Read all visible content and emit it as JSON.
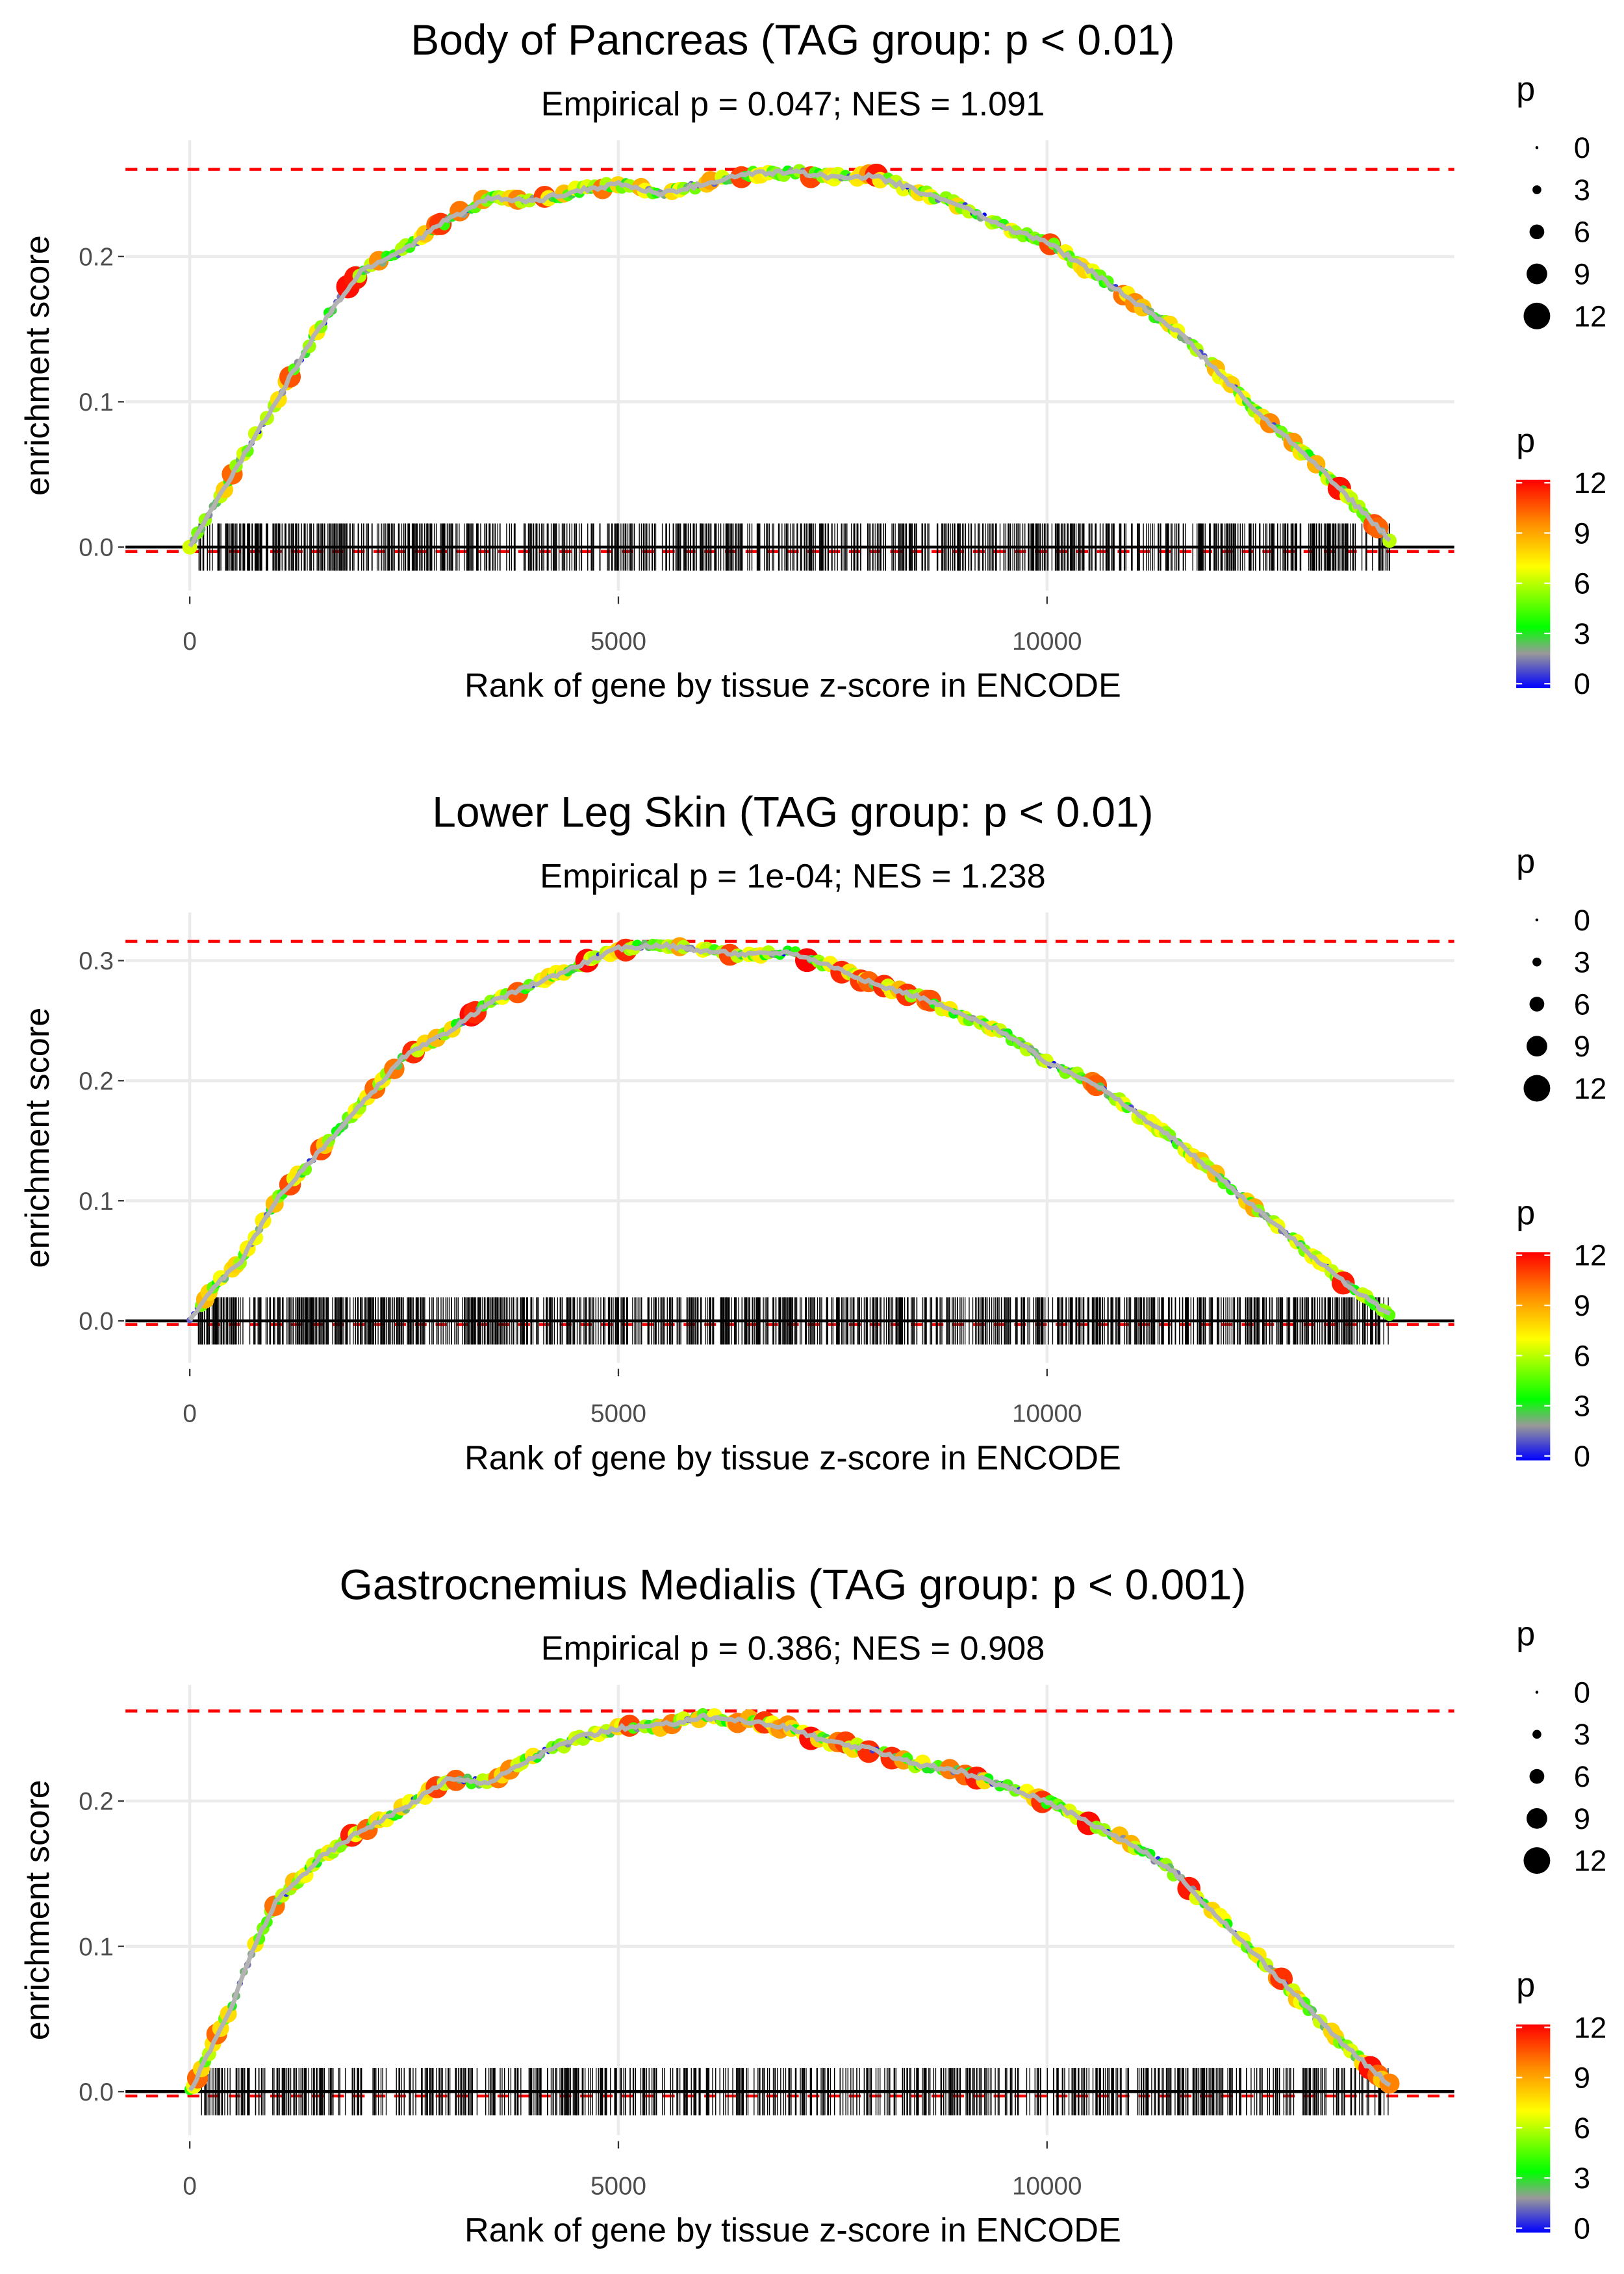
{
  "chart_data": [
    {
      "type": "line",
      "title": "Body of Pancreas (TAG group: p < 0.01)",
      "subtitle": "Empirical p = 0.047; NES = 1.091",
      "xlabel": "Rank of gene by tissue z-score in ENCODE",
      "ylabel": "enrichment score",
      "xticks": [
        0,
        5000,
        10000
      ],
      "xtick_labels": [
        "0",
        "5000",
        "10000"
      ],
      "yticks": [
        0,
        0.1,
        0.2
      ],
      "ytick_labels": [
        "0.0",
        "0.1",
        "0.2"
      ],
      "xlim": [
        -750,
        14750
      ],
      "ylim": [
        -0.03,
        0.28
      ],
      "max_es_line": 0.26,
      "min_es_line": -0.003,
      "curve": [
        [
          0,
          0
        ],
        [
          500,
          0.05
        ],
        [
          1000,
          0.1
        ],
        [
          1500,
          0.15
        ],
        [
          2000,
          0.19
        ],
        [
          2500,
          0.205
        ],
        [
          3000,
          0.225
        ],
        [
          3500,
          0.24
        ],
        [
          4000,
          0.238
        ],
        [
          4500,
          0.245
        ],
        [
          5000,
          0.25
        ],
        [
          5500,
          0.243
        ],
        [
          6000,
          0.25
        ],
        [
          6500,
          0.257
        ],
        [
          7000,
          0.258
        ],
        [
          7500,
          0.255
        ],
        [
          8000,
          0.255
        ],
        [
          8500,
          0.245
        ],
        [
          9000,
          0.235
        ],
        [
          9500,
          0.22
        ],
        [
          10000,
          0.21
        ],
        [
          10500,
          0.19
        ],
        [
          11000,
          0.17
        ],
        [
          11500,
          0.15
        ],
        [
          12000,
          0.12
        ],
        [
          12500,
          0.09
        ],
        [
          13000,
          0.065
        ],
        [
          13500,
          0.035
        ],
        [
          14000,
          0.005
        ]
      ],
      "rug_count": 900,
      "rug_range": [
        100,
        14000
      ],
      "seed": 3
    },
    {
      "type": "line",
      "title": "Lower Leg Skin (TAG group: p < 0.01)",
      "subtitle": "Empirical p = 1e-04; NES = 1.238",
      "xlabel": "Rank of gene by tissue z-score in ENCODE",
      "ylabel": "enrichment score",
      "xticks": [
        0,
        5000,
        10000
      ],
      "xtick_labels": [
        "0",
        "5000",
        "10000"
      ],
      "yticks": [
        0,
        0.1,
        0.2,
        0.3
      ],
      "ytick_labels": [
        "0.0",
        "0.1",
        "0.2",
        "0.3"
      ],
      "xlim": [
        -750,
        14750
      ],
      "ylim": [
        -0.035,
        0.34
      ],
      "max_es_line": 0.316,
      "min_es_line": -0.003,
      "curve": [
        [
          0,
          0
        ],
        [
          300,
          0.03
        ],
        [
          600,
          0.05
        ],
        [
          1000,
          0.1
        ],
        [
          1500,
          0.14
        ],
        [
          2000,
          0.18
        ],
        [
          2500,
          0.22
        ],
        [
          3000,
          0.24
        ],
        [
          3500,
          0.265
        ],
        [
          4000,
          0.28
        ],
        [
          4500,
          0.295
        ],
        [
          5000,
          0.31
        ],
        [
          5500,
          0.313
        ],
        [
          6000,
          0.308
        ],
        [
          6500,
          0.305
        ],
        [
          7000,
          0.307
        ],
        [
          7500,
          0.295
        ],
        [
          8000,
          0.28
        ],
        [
          8500,
          0.27
        ],
        [
          9000,
          0.255
        ],
        [
          9500,
          0.24
        ],
        [
          10000,
          0.215
        ],
        [
          10500,
          0.2
        ],
        [
          11000,
          0.175
        ],
        [
          11500,
          0.15
        ],
        [
          12000,
          0.12
        ],
        [
          12500,
          0.09
        ],
        [
          13000,
          0.06
        ],
        [
          13500,
          0.03
        ],
        [
          14000,
          0.005
        ]
      ],
      "rug_count": 1000,
      "rug_range": [
        100,
        14000
      ],
      "seed": 7
    },
    {
      "type": "line",
      "title": "Gastrocnemius Medialis (TAG group: p < 0.001)",
      "subtitle": "Empirical p = 0.386; NES = 0.908",
      "xlabel": "Rank of gene by tissue z-score in ENCODE",
      "ylabel": "enrichment score",
      "xticks": [
        0,
        5000,
        10000
      ],
      "xtick_labels": [
        "0",
        "5000",
        "10000"
      ],
      "yticks": [
        0,
        0.1,
        0.2
      ],
      "ytick_labels": [
        "0.0",
        "0.1",
        "0.2"
      ],
      "xlim": [
        -750,
        14750
      ],
      "ylim": [
        -0.03,
        0.28
      ],
      "max_es_line": 0.262,
      "min_es_line": -0.003,
      "curve": [
        [
          0,
          0
        ],
        [
          250,
          0.03
        ],
        [
          500,
          0.06
        ],
        [
          750,
          0.1
        ],
        [
          1000,
          0.13
        ],
        [
          1500,
          0.16
        ],
        [
          2000,
          0.18
        ],
        [
          2500,
          0.195
        ],
        [
          3000,
          0.215
        ],
        [
          3500,
          0.213
        ],
        [
          4000,
          0.23
        ],
        [
          4500,
          0.243
        ],
        [
          5000,
          0.25
        ],
        [
          5500,
          0.252
        ],
        [
          6000,
          0.258
        ],
        [
          6500,
          0.255
        ],
        [
          7000,
          0.25
        ],
        [
          7500,
          0.24
        ],
        [
          8000,
          0.235
        ],
        [
          8500,
          0.225
        ],
        [
          9000,
          0.22
        ],
        [
          9500,
          0.21
        ],
        [
          10000,
          0.2
        ],
        [
          10500,
          0.185
        ],
        [
          11000,
          0.17
        ],
        [
          11500,
          0.15
        ],
        [
          12000,
          0.12
        ],
        [
          12500,
          0.09
        ],
        [
          13000,
          0.06
        ],
        [
          13500,
          0.03
        ],
        [
          14000,
          0.005
        ]
      ],
      "rug_count": 700,
      "rug_range": [
        100,
        14000
      ],
      "seed": 11
    }
  ],
  "legend": {
    "size_title": "p",
    "size_values": [
      "0",
      "3",
      "6",
      "9",
      "12"
    ],
    "color_title": "p",
    "color_values": [
      "12",
      "9",
      "6",
      "3",
      "0"
    ],
    "colors": [
      "#0000ff",
      "#999999",
      "#00ff00",
      "#ffff00",
      "#ff8c00",
      "#ff0000"
    ]
  }
}
